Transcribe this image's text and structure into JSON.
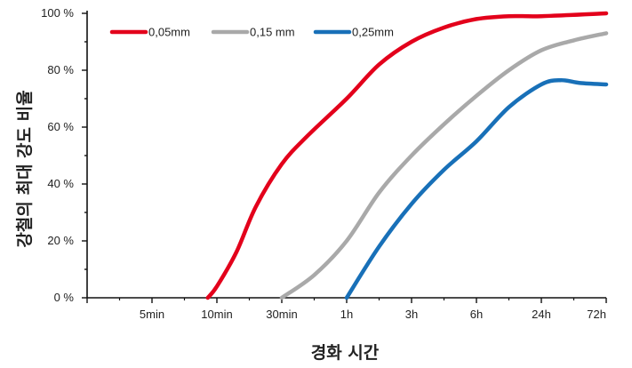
{
  "chart_data": {
    "type": "line",
    "xlabel": "경화 시간",
    "ylabel": "강철의 최대 강도 비율",
    "categories": [
      "",
      "5min",
      "10min",
      "30min",
      "1h",
      "3h",
      "6h",
      "24h",
      "72h"
    ],
    "ylim": [
      0,
      100
    ],
    "yticks": [
      "0 %",
      "20 %",
      "40 %",
      "60 %",
      "80 %",
      "100 %"
    ],
    "grid": false,
    "legend_position": "top-left",
    "series": [
      {
        "name": "0,05mm",
        "color": "#e3001b",
        "points": [
          [
            1.86,
            0
          ],
          [
            2.0,
            4
          ],
          [
            2.3,
            16
          ],
          [
            2.6,
            32
          ],
          [
            3.0,
            47
          ],
          [
            3.4,
            57
          ],
          [
            4.0,
            70
          ],
          [
            4.5,
            82
          ],
          [
            5.0,
            90
          ],
          [
            5.5,
            95
          ],
          [
            6.0,
            98
          ],
          [
            6.5,
            99
          ],
          [
            7.0,
            99
          ],
          [
            8.0,
            100
          ]
        ]
      },
      {
        "name": "0,15 mm",
        "color": "#a9a9a9",
        "points": [
          [
            3.0,
            0
          ],
          [
            3.5,
            8
          ],
          [
            4.0,
            20
          ],
          [
            4.5,
            37
          ],
          [
            5.0,
            50
          ],
          [
            5.5,
            61
          ],
          [
            6.0,
            71
          ],
          [
            6.5,
            80
          ],
          [
            7.0,
            87
          ],
          [
            7.5,
            90.5
          ],
          [
            8.0,
            93
          ]
        ]
      },
      {
        "name": "0,25mm",
        "color": "#1870b8",
        "points": [
          [
            4.0,
            0
          ],
          [
            4.5,
            18
          ],
          [
            5.0,
            33
          ],
          [
            5.5,
            45
          ],
          [
            6.0,
            55
          ],
          [
            6.5,
            67
          ],
          [
            7.0,
            75
          ],
          [
            7.3,
            76.5
          ],
          [
            7.6,
            75.5
          ],
          [
            8.0,
            75
          ]
        ]
      }
    ]
  }
}
